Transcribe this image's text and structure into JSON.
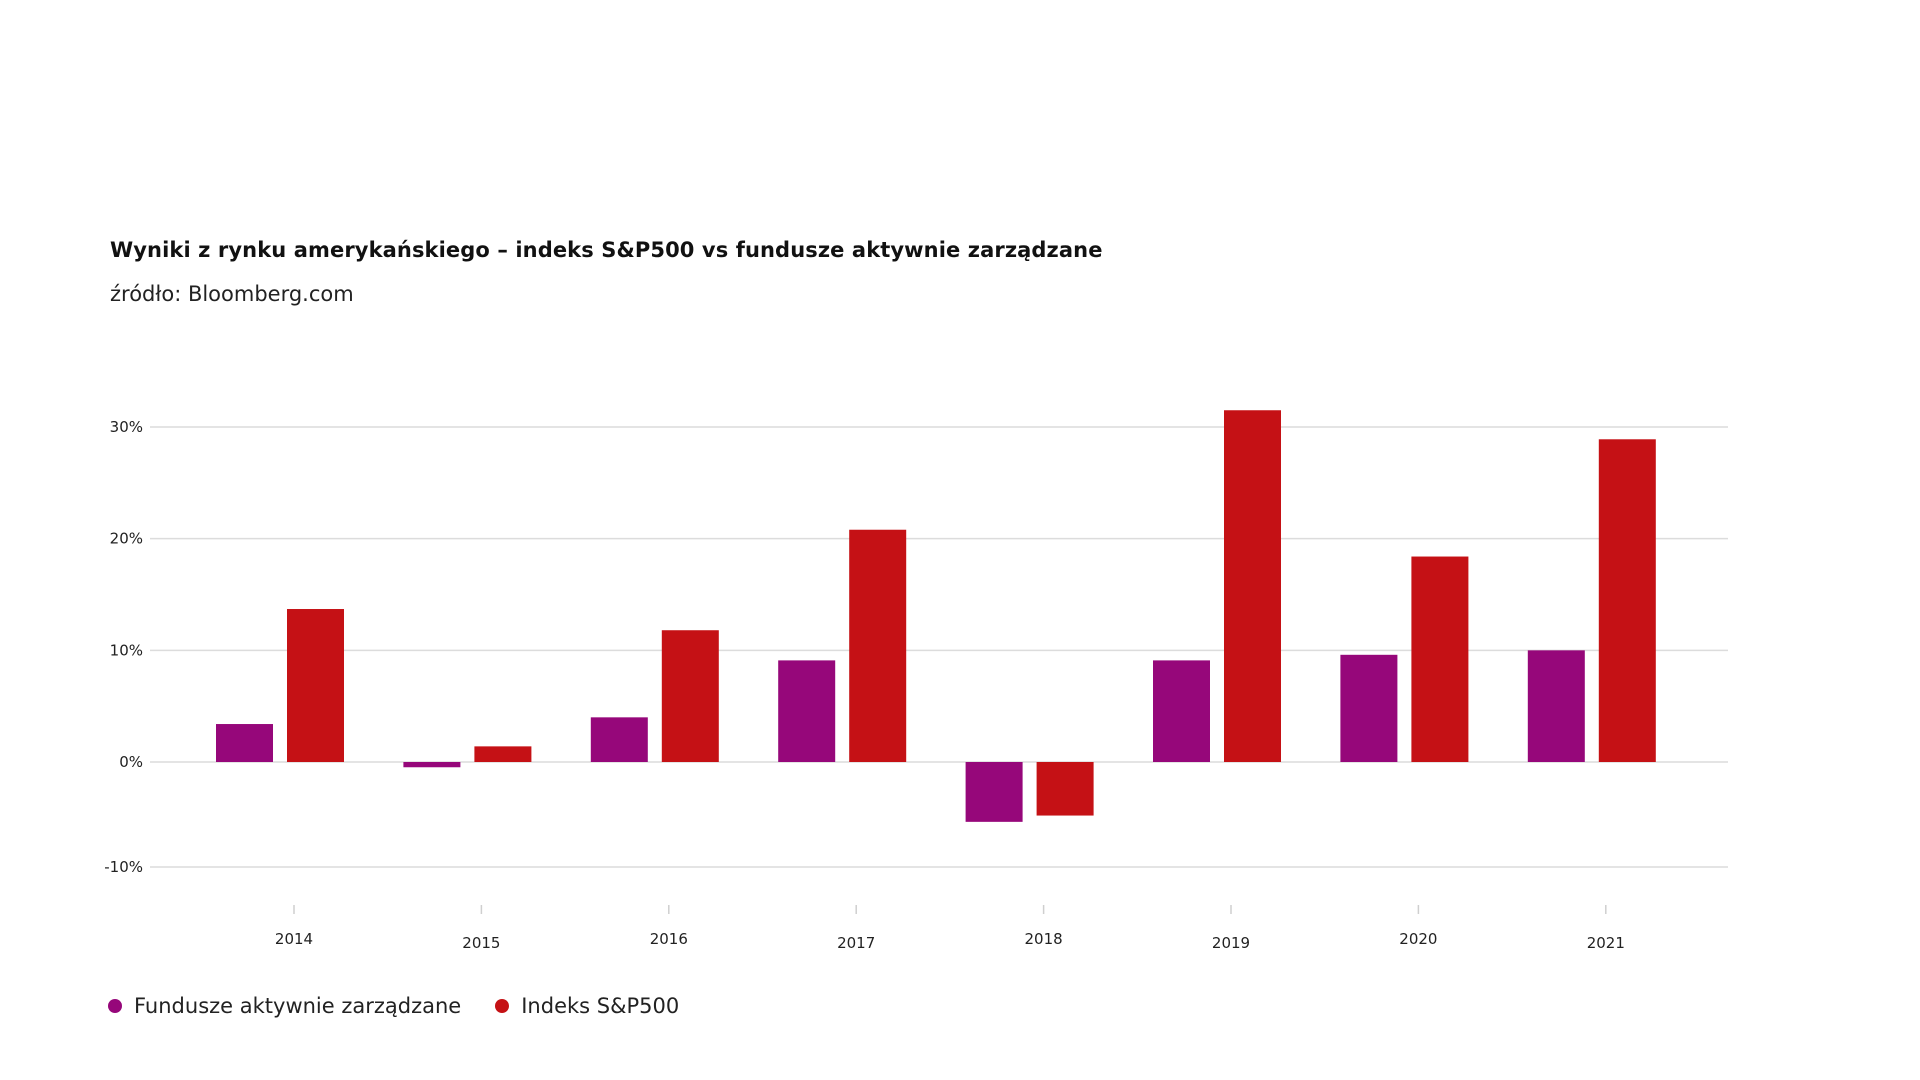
{
  "chart_data": {
    "type": "bar",
    "title": "Wyniki z rynku amerykańskiego – indeks S&P500 vs fundusze aktywnie zarządzane",
    "subtitle": "źródło: Bloomberg.com",
    "categories": [
      "2014",
      "2015",
      "2016",
      "2017",
      "2018",
      "2019",
      "2020",
      "2021"
    ],
    "series": [
      {
        "name": "Fundusze aktywnie zarządzane",
        "color": "#96077a",
        "values": [
          3.4,
          -0.5,
          4.0,
          9.1,
          -5.7,
          9.1,
          9.6,
          10.0
        ]
      },
      {
        "name": "Indeks S&P500",
        "color": "#c51115",
        "values": [
          13.7,
          1.4,
          11.8,
          20.8,
          -5.1,
          31.5,
          18.4,
          28.9
        ]
      }
    ],
    "y_ticks": [
      {
        "value": 30,
        "label": "30%"
      },
      {
        "value": 20,
        "label": "20%"
      },
      {
        "value": 10,
        "label": "10%"
      },
      {
        "value": 0,
        "label": "0%"
      },
      {
        "value": -10,
        "label": "-10%"
      }
    ],
    "ylim": [
      -10,
      30
    ],
    "grid": true,
    "legend_position": "bottom-left",
    "xlabel": "",
    "ylabel": ""
  }
}
